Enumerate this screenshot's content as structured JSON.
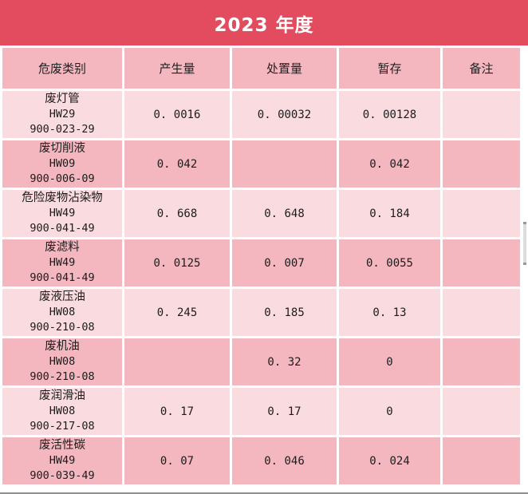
{
  "title": "2023 年度",
  "theme": {
    "banner_red": "#e34c5e",
    "pink_dark": "#f4b6bf",
    "pink_light": "#fadbdf",
    "ink": "#1c1c1c",
    "rule_gray": "#8f8f8f"
  },
  "table": {
    "columns": [
      "危废类别",
      "产生量",
      "处置量",
      "暂存",
      "备注"
    ],
    "rows": [
      {
        "category": "废灯管",
        "hw_code": "HW29",
        "waste_code": "900-023-29",
        "produced": "0. 0016",
        "disposed": "0. 00032",
        "stored": "0. 00128",
        "remark": ""
      },
      {
        "category": "废切削液",
        "hw_code": "HW09",
        "waste_code": "900-006-09",
        "produced": "0. 042",
        "disposed": "",
        "stored": "0. 042",
        "remark": ""
      },
      {
        "category": "危险废物沾染物",
        "hw_code": "HW49",
        "waste_code": "900-041-49",
        "produced": "0. 668",
        "disposed": "0. 648",
        "stored": "0. 184",
        "remark": ""
      },
      {
        "category": "废滤料",
        "hw_code": "HW49",
        "waste_code": "900-041-49",
        "produced": "0. 0125",
        "disposed": "0. 007",
        "stored": "0. 0055",
        "remark": ""
      },
      {
        "category": "废液压油",
        "hw_code": "HW08",
        "waste_code": "900-210-08",
        "produced": "0. 245",
        "disposed": "0. 185",
        "stored": "0. 13",
        "remark": ""
      },
      {
        "category": "废机油",
        "hw_code": "HW08",
        "waste_code": "900-210-08",
        "produced": "",
        "disposed": "0. 32",
        "stored": "0",
        "remark": ""
      },
      {
        "category": "废润滑油",
        "hw_code": "HW08",
        "waste_code": "900-217-08",
        "produced": "0. 17",
        "disposed": "0. 17",
        "stored": "0",
        "remark": ""
      },
      {
        "category": "废活性碳",
        "hw_code": "HW49",
        "waste_code": "900-039-49",
        "produced": "0. 07",
        "disposed": "0. 046",
        "stored": "0. 024",
        "remark": ""
      }
    ]
  }
}
